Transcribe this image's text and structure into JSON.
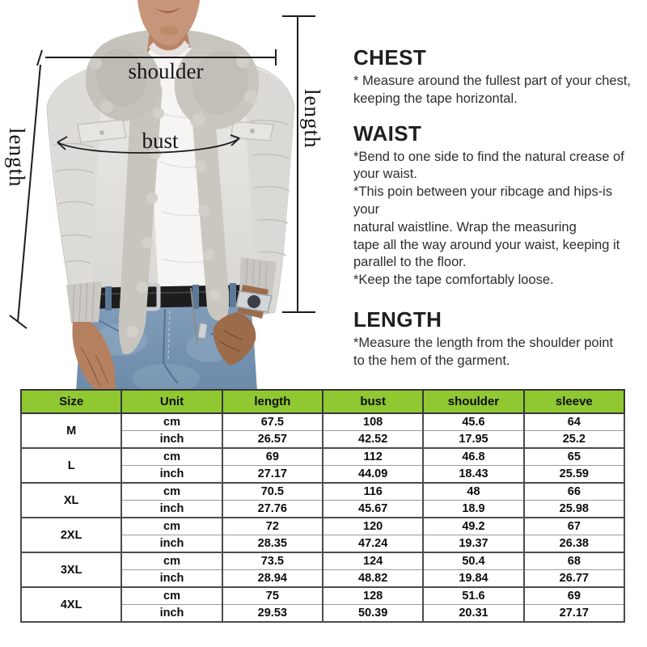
{
  "photo": {
    "annotations": {
      "shoulder": "shoulder",
      "bust": "bust",
      "length_left": "length",
      "length_right": "length"
    }
  },
  "instructions": {
    "sections": [
      {
        "heading": "CHEST",
        "lines": [
          "* Measure around the fullest part of your chest,",
          "keeping the tape horizontal."
        ]
      },
      {
        "heading": "WAIST",
        "lines": [
          "*Bend to one side to find the natural crease of",
          "your waist.",
          "*This poin between your ribcage and hips-is your",
          "natural waistline. Wrap the measuring",
          "tape all the way around your waist, keeping it",
          "parallel to the floor.",
          "*Keep the tape comfortably loose."
        ]
      },
      {
        "heading": "LENGTH",
        "lines": [
          "*Measure the length from the shoulder point",
          "to the hem of the garment."
        ]
      }
    ]
  },
  "size_table": {
    "headers": [
      "Size",
      "Unit",
      "length",
      "bust",
      "shoulder",
      "sleeve"
    ],
    "unit_labels": [
      "cm",
      "inch"
    ],
    "rows": [
      {
        "size": "M",
        "cm": [
          "67.5",
          "108",
          "45.6",
          "64"
        ],
        "inch": [
          "26.57",
          "42.52",
          "17.95",
          "25.2"
        ]
      },
      {
        "size": "L",
        "cm": [
          "69",
          "112",
          "46.8",
          "65"
        ],
        "inch": [
          "27.17",
          "44.09",
          "18.43",
          "25.59"
        ]
      },
      {
        "size": "XL",
        "cm": [
          "70.5",
          "116",
          "48",
          "66"
        ],
        "inch": [
          "27.76",
          "45.67",
          "18.9",
          "25.98"
        ]
      },
      {
        "size": "2XL",
        "cm": [
          "72",
          "120",
          "49.2",
          "67"
        ],
        "inch": [
          "28.35",
          "47.24",
          "19.37",
          "26.38"
        ]
      },
      {
        "size": "3XL",
        "cm": [
          "73.5",
          "124",
          "50.4",
          "68"
        ],
        "inch": [
          "28.94",
          "48.82",
          "19.84",
          "26.77"
        ]
      },
      {
        "size": "4XL",
        "cm": [
          "75",
          "128",
          "51.6",
          "69"
        ],
        "inch": [
          "29.53",
          "50.39",
          "20.31",
          "27.17"
        ]
      }
    ]
  },
  "colors": {
    "header_green": "#90C832",
    "table_border_dark": "#353535",
    "table_border_light": "#9b9b9b",
    "annotation_line": "#1c1c1c"
  }
}
